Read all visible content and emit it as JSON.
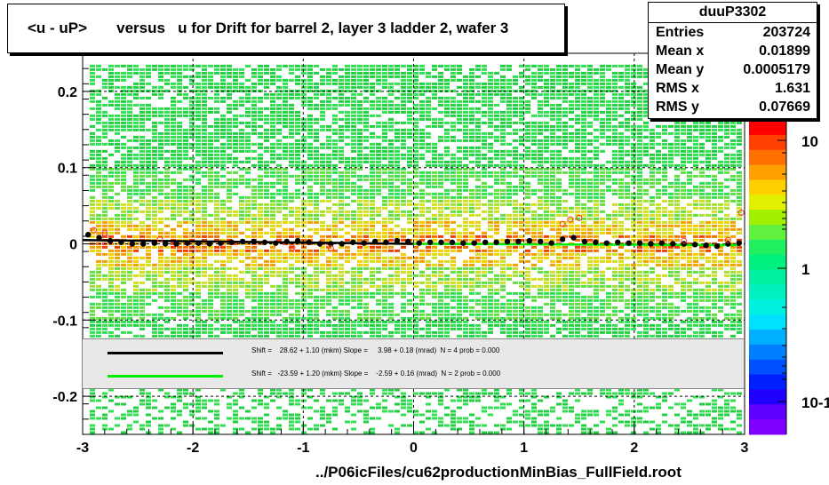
{
  "title": "<u - uP>       versus   u for Drift for barrel 2, layer 3 ladder 2, wafer 3",
  "stats": {
    "name": "duuP3302",
    "rows": [
      {
        "label": "Entries",
        "value": "203724"
      },
      {
        "label": "Mean x",
        "value": "0.01899"
      },
      {
        "label": "Mean y",
        "value": "0.0005179"
      },
      {
        "label": "RMS x",
        "value": "1.631"
      },
      {
        "label": "RMS y",
        "value": "0.07669"
      }
    ]
  },
  "legend": [
    {
      "color": "#000000",
      "text": "Shift =    28.62 + 1.10 (mkm) Slope =     3.98 + 0.18 (mrad)  N = 4 prob = 0.000"
    },
    {
      "color": "#00ee00",
      "text": "Shift =   -23.59 + 1.20 (mkm) Slope =    -2.59 + 0.16 (mrad)  N = 2 prob = 0.000"
    }
  ],
  "footer": "../P06icFiles/cu62productionMinBias_FullField.root",
  "colors": {
    "fit_black": "#000000",
    "fit_green": "#00ee00",
    "marker_open": "#ff3030"
  },
  "chart_data": {
    "type": "heatmap",
    "xlim": [
      -3,
      3
    ],
    "ylim": [
      -0.25,
      0.25
    ],
    "x_ticks": [
      -3,
      -2,
      -1,
      0,
      1,
      2,
      3
    ],
    "y_ticks": [
      -0.2,
      -0.1,
      0,
      0.1,
      0.2
    ],
    "x_tick_labels": [
      "-3",
      "-2",
      "-1",
      "0",
      "1",
      "2",
      "3"
    ],
    "y_tick_labels": [
      "-0.2",
      "-0.1",
      "0",
      "0.1",
      "0.2"
    ],
    "grid": true,
    "colorbar": {
      "scale": "log",
      "tick_labels": [
        "10",
        "1",
        "10-1"
      ]
    },
    "profile_points": {
      "x": [
        -2.95,
        -2.85,
        -2.75,
        -2.65,
        -2.55,
        -2.45,
        -2.35,
        -2.25,
        -2.15,
        -2.05,
        -1.95,
        -1.85,
        -1.75,
        -1.65,
        -1.55,
        -1.45,
        -1.35,
        -1.25,
        -1.15,
        -1.05,
        -0.95,
        -0.85,
        -0.75,
        -0.65,
        -0.55,
        -0.45,
        -0.35,
        -0.25,
        -0.15,
        -0.05,
        0.05,
        0.15,
        0.25,
        0.35,
        0.45,
        0.55,
        0.65,
        0.75,
        0.85,
        0.95,
        1.05,
        1.15,
        1.25,
        1.35,
        1.45,
        1.55,
        1.65,
        1.75,
        1.85,
        1.95,
        2.05,
        2.15,
        2.25,
        2.35,
        2.45,
        2.55,
        2.65,
        2.75,
        2.85,
        2.95
      ],
      "y": [
        0.012,
        0.008,
        0.004,
        0.002,
        0.0,
        0.0,
        0.001,
        0.0,
        0.0,
        0.001,
        0.001,
        0.0,
        0.001,
        0.002,
        0.003,
        0.003,
        0.002,
        0.001,
        0.003,
        0.004,
        0.002,
        0.0,
        0.0,
        0.0,
        0.002,
        0.001,
        0.003,
        0.002,
        0.004,
        0.003,
        0.001,
        0.002,
        0.002,
        0.002,
        0.001,
        0.001,
        0.002,
        0.002,
        0.003,
        0.003,
        0.004,
        0.003,
        0.001,
        0.006,
        0.008,
        0.003,
        0.002,
        0.001,
        0.002,
        0.001,
        0.001,
        0.0,
        0.001,
        0.0,
        0.0,
        -0.001,
        -0.002,
        -0.003,
        0.0,
        0.001
      ]
    },
    "open_markers": {
      "x": [
        -2.9,
        -2.8,
        -2.3,
        -1.1,
        -0.75,
        1.35,
        1.42,
        1.5,
        2.45,
        2.85,
        2.97
      ],
      "y": [
        0.018,
        0.014,
        0.006,
        -0.005,
        -0.006,
        0.026,
        0.032,
        0.034,
        0.004,
        0.005,
        0.041
      ]
    },
    "fit_lines": [
      {
        "color": "#000000",
        "x": [
          -3,
          0
        ],
        "y": [
          0.0049,
          0.0
        ]
      },
      {
        "color": "#00ee00",
        "x": [
          0,
          2.95
        ],
        "y": [
          0.0,
          -0.0018
        ]
      }
    ]
  }
}
